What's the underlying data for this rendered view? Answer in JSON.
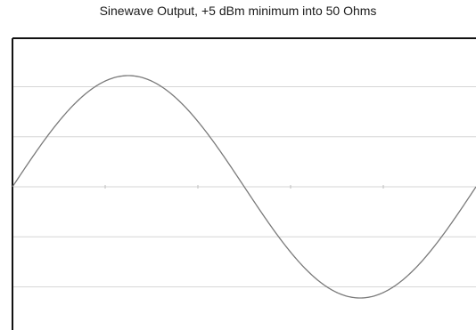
{
  "chart_data": {
    "type": "line",
    "title": "Sinewave Output, +5 dBm minimum into 50 Ohms",
    "xlabel": "",
    "ylabel": "",
    "xlim": [
      0,
      360
    ],
    "ylim": [
      -1.25,
      1.25
    ],
    "grid": true,
    "legend": "none",
    "series": [
      {
        "x": [
          0,
          15,
          30,
          45,
          60,
          75,
          90,
          105,
          120,
          135,
          150,
          165,
          180,
          195,
          210,
          225,
          240,
          255,
          270,
          285,
          300,
          315,
          330,
          345,
          360
        ],
        "values": [
          0,
          0.259,
          0.5,
          0.707,
          0.866,
          0.966,
          1,
          0.966,
          0.866,
          0.707,
          0.5,
          0.259,
          0,
          -0.259,
          -0.5,
          -0.707,
          -0.866,
          -0.966,
          -1,
          -0.966,
          -0.866,
          -0.707,
          -0.5,
          -0.259,
          0
        ]
      }
    ]
  },
  "colors": {
    "curve": "#7a7a7a",
    "grid": "#d6d6d6",
    "frame": "#111111"
  }
}
